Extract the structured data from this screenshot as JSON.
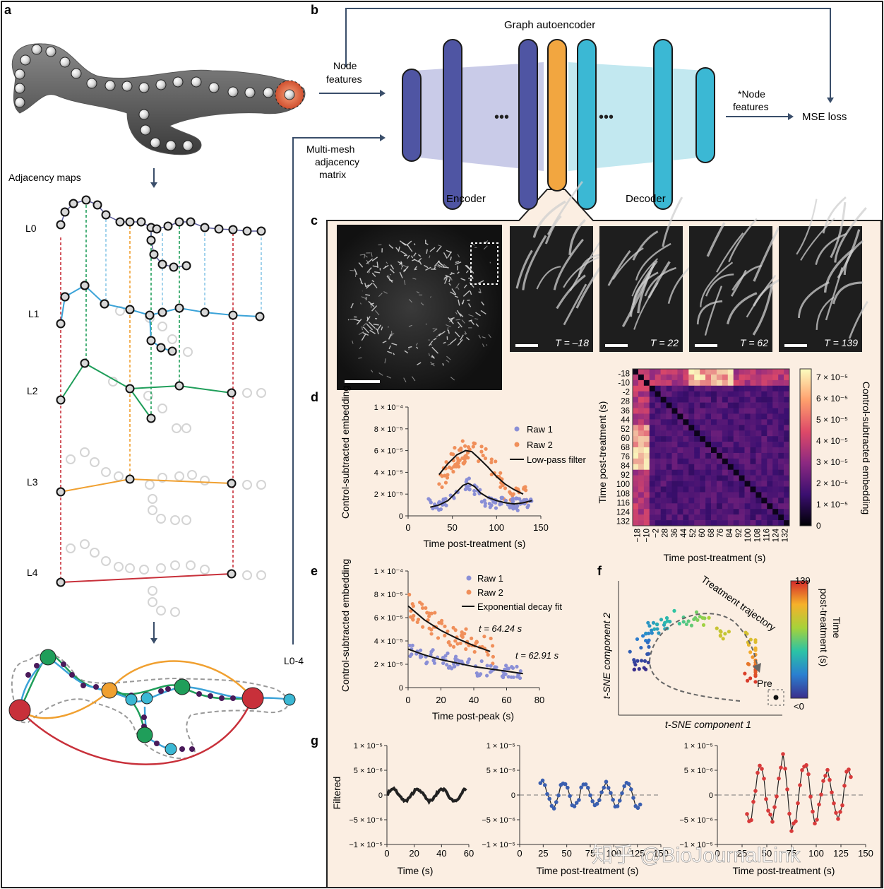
{
  "panel_labels": {
    "a": "a",
    "b": "b",
    "c": "c",
    "d": "d",
    "e": "e",
    "f": "f",
    "g": "g"
  },
  "panel_a": {
    "adjacency_title": "Adjacency maps",
    "levels": [
      "L0",
      "L1",
      "L2",
      "L3",
      "L4"
    ]
  },
  "panel_b": {
    "title": "Graph autoencoder",
    "node_features": "Node features",
    "node_features_line1": "Node",
    "node_features_line2": "features",
    "adjacency_line1": "Multi-mesh",
    "adjacency_line2": "adjacency",
    "adjacency_line3": "matrix",
    "encoder": "Encoder",
    "decoder": "Decoder",
    "out_line1": "*Node",
    "out_line2": "features",
    "loss": "MSE loss",
    "ellipsis": "•••",
    "side_label": "L0-4"
  },
  "panel_c": {
    "time_labels": [
      "T = –18",
      "T = 22",
      "T = 62",
      "T = 139"
    ]
  },
  "colors": {
    "encoder": "#4f55a3",
    "latent": "#f2a640",
    "decoder": "#3bb8d4",
    "raw1": "#8a8fd6",
    "raw2": "#f08f5a",
    "l1": "#3ba3d8",
    "l2": "#1f9e5a",
    "l3": "#f0a030",
    "l4": "#c8303a",
    "g1": "#222222",
    "g2": "#3a5fb0",
    "g3": "#d83a3a",
    "bg_panel": "#fbeee2"
  },
  "chart_data": [
    {
      "id": "d-scatter",
      "type": "scatter",
      "xlabel": "Time post-treatment (s)",
      "ylabel": "Control-subtracted embedding",
      "xlim": [
        0,
        150
      ],
      "ylim": [
        0,
        0.0001
      ],
      "xticks": [
        "0",
        "50",
        "100",
        "150"
      ],
      "yticks": [
        "0",
        "2 × 10⁻⁵",
        "4 × 10⁻⁵",
        "6 × 10⁻⁵",
        "8 × 10⁻⁵",
        "1 × 10⁻⁴"
      ],
      "legend": [
        "Raw 1",
        "Raw 2",
        "Low-pass filter"
      ],
      "series": [
        {
          "name": "Low-pass filter (Raw 2)",
          "x": [
            35,
            45,
            55,
            65,
            72,
            80,
            90,
            100,
            110,
            120,
            130
          ],
          "y": [
            3.8e-05,
            4.8e-05,
            5.6e-05,
            6e-05,
            5.9e-05,
            5.3e-05,
            4.5e-05,
            3.6e-05,
            2.9e-05,
            2.4e-05,
            2e-05
          ]
        },
        {
          "name": "Low-pass filter (Raw 1)",
          "x": [
            25,
            35,
            45,
            55,
            62,
            68,
            75,
            82,
            90,
            100,
            110,
            120,
            130,
            140
          ],
          "y": [
            8e-06,
            1e-05,
            1.4e-05,
            2.2e-05,
            2.8e-05,
            3e-05,
            2.7e-05,
            2.1e-05,
            1.7e-05,
            1.4e-05,
            1.2e-05,
            1.1e-05,
            1.2e-05,
            1.4e-05
          ]
        }
      ]
    },
    {
      "id": "d-heatmap",
      "type": "heatmap",
      "xlabel": "Time post-treatment (s)",
      "ylabel": "Time post-treatment (s)",
      "ticks": [
        "-18",
        "-10",
        "-2",
        "28",
        "36",
        "44",
        "52",
        "60",
        "68",
        "76",
        "84",
        "92",
        "100",
        "108",
        "116",
        "124",
        "132"
      ],
      "xticks": [
        "−18",
        "−10",
        "−2",
        "28",
        "36",
        "44",
        "52",
        "60",
        "68",
        "76",
        "84",
        "92",
        "100",
        "108",
        "116",
        "124",
        "132"
      ],
      "colorbar_label": "Control-subtracted embedding",
      "colorbar_ticks": [
        "0",
        "1 × 10⁻⁵",
        "2 × 10⁻⁵",
        "3 × 10⁻⁵",
        "4 × 10⁻⁵",
        "5 × 10⁻⁵",
        "6 × 10⁻⁵",
        "7 × 10⁻⁵"
      ]
    },
    {
      "id": "e-scatter",
      "type": "scatter",
      "xlabel": "Time post-peak (s)",
      "ylabel": "Control-subtracted embedding",
      "xlim": [
        0,
        80
      ],
      "ylim": [
        0,
        0.0001
      ],
      "xticks": [
        "0",
        "20",
        "40",
        "60",
        "80"
      ],
      "yticks": [
        "0",
        "2 × 10⁻⁵",
        "4 × 10⁻⁵",
        "6 × 10⁻⁵",
        "8 × 10⁻⁵",
        "1 × 10⁻⁴"
      ],
      "legend": [
        "Raw 1",
        "Raw 2",
        "Exponential decay fit"
      ],
      "annotations": [
        "t = 64.24 s",
        "t = 62.91 s"
      ],
      "series": [
        {
          "name": "Exponential decay fit (Raw 2)",
          "x": [
            0,
            10,
            20,
            30,
            40,
            50
          ],
          "y": [
            7e-05,
            5.8e-05,
            4.9e-05,
            4.2e-05,
            3.6e-05,
            3.1e-05
          ]
        },
        {
          "name": "Exponential decay fit (Raw 1)",
          "x": [
            0,
            10,
            20,
            30,
            40,
            50,
            60,
            70
          ],
          "y": [
            3.3e-05,
            2.8e-05,
            2.4e-05,
            2.1e-05,
            1.8e-05,
            1.6e-05,
            1.4e-05,
            1.2e-05
          ]
        }
      ]
    },
    {
      "id": "f-tsne",
      "type": "scatter",
      "xlabel": "t-SNE component 1",
      "ylabel": "t-SNE component 2",
      "annotation": "Treatment trajectory",
      "pre_label": "Pre",
      "colorbar_label": "Time post-treatment (s)",
      "colorbar_label_line1": "Time",
      "colorbar_label_line2": "post-treatment (s)",
      "colorbar_ticks": [
        "139",
        "<0"
      ]
    },
    {
      "id": "g-filtered",
      "type": "line",
      "ylabel": "Filtered",
      "yticks": [
        "−1 × 10⁻⁵",
        "−5 × 10⁻⁶",
        "0",
        "5 × 10⁻⁶",
        "1 × 10⁻⁵"
      ],
      "panels": [
        {
          "xlabel": "Time (s)",
          "xticks": [
            "0",
            "20",
            "40",
            "60"
          ],
          "xlim": [
            0,
            60
          ]
        },
        {
          "xlabel": "Time post-treatment (s)",
          "xticks": [
            "0",
            "25",
            "50",
            "75",
            "100",
            "125",
            "150"
          ],
          "xlim": [
            0,
            150
          ]
        },
        {
          "xlabel": "Time post-treatment (s)",
          "xticks": [
            "0",
            "25",
            "50",
            "75",
            "100",
            "125",
            "150"
          ],
          "xlim": [
            0,
            150
          ]
        }
      ]
    }
  ],
  "watermark": "知乎 @BioJournalLink"
}
